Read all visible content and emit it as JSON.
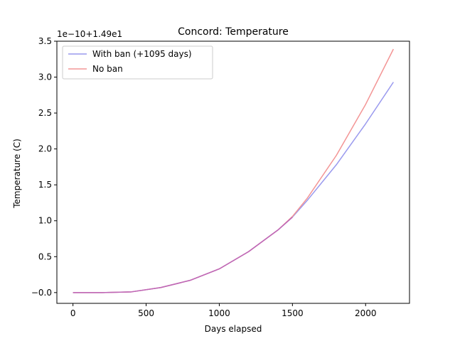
{
  "chart_data": {
    "type": "line",
    "title": "Concord: Temperature",
    "xlabel": "Days elapsed",
    "ylabel": "Temperature (C)",
    "offset_label": "1e−10+1.49e1",
    "xlim": [
      -110,
      2300
    ],
    "ylim": [
      -0.15,
      3.5
    ],
    "xticks": [
      0,
      500,
      1000,
      1500,
      2000
    ],
    "xtick_labels": [
      "0",
      "500",
      "1000",
      "1500",
      "2000"
    ],
    "yticks": [
      0.0,
      0.5,
      1.0,
      1.5,
      2.0,
      2.5,
      3.0,
      3.5
    ],
    "ytick_labels": [
      "−0.0",
      "0.5",
      "1.0",
      "1.5",
      "2.0",
      "2.5",
      "3.0",
      "3.5"
    ],
    "grid": false,
    "legend_position": "upper-left",
    "series": [
      {
        "name": "With ban (+1095 days)",
        "color": "#9999ee",
        "x": [
          0,
          200,
          400,
          600,
          800,
          1000,
          1200,
          1400,
          1500,
          1600,
          1800,
          2000,
          2190
        ],
        "y": [
          -0.0,
          0.0,
          0.01,
          0.07,
          0.17,
          0.33,
          0.57,
          0.87,
          1.05,
          1.28,
          1.78,
          2.35,
          2.93
        ]
      },
      {
        "name": "No ban",
        "color": "#f39595",
        "x": [
          0,
          200,
          400,
          600,
          800,
          1000,
          1200,
          1400,
          1500,
          1600,
          1800,
          2000,
          2190
        ],
        "y": [
          -0.0,
          0.0,
          0.01,
          0.07,
          0.17,
          0.33,
          0.57,
          0.87,
          1.06,
          1.31,
          1.91,
          2.62,
          3.39
        ]
      }
    ]
  }
}
